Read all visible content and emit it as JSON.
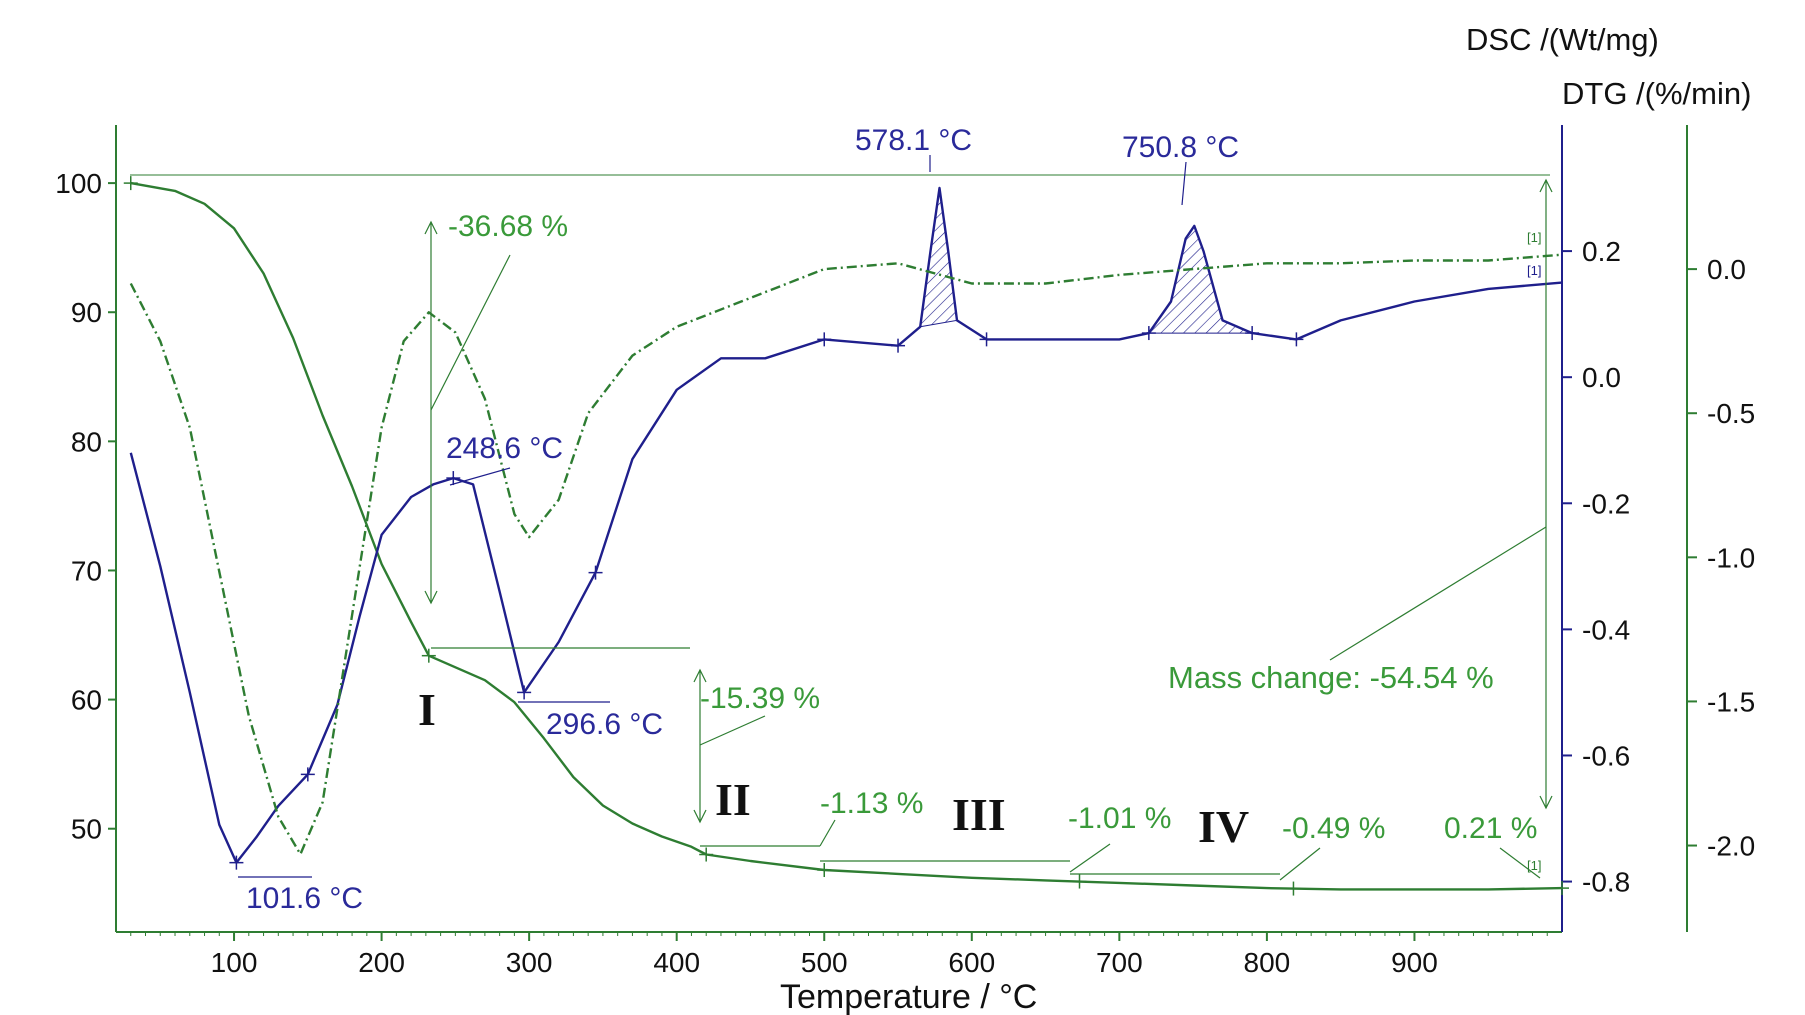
{
  "chart_data": {
    "type": "line",
    "title": "",
    "xlabel": "Temperature / °C",
    "xlim": [
      20,
      1000
    ],
    "x_ticks": [
      100,
      200,
      300,
      400,
      500,
      600,
      700,
      800,
      900
    ],
    "axes": {
      "tg": {
        "label": "",
        "ylim": [
          42,
          104.5
        ],
        "ticks": [
          50,
          60,
          70,
          80,
          90,
          100
        ]
      },
      "dsc": {
        "label": "DSC /(Wt/mg)",
        "ylim": [
          -0.88,
          0.4
        ],
        "ticks": [
          -0.8,
          -0.6,
          -0.4,
          -0.2,
          0.0,
          0.2
        ]
      },
      "dtg": {
        "label": "DTG /(%/min)",
        "ylim": [
          -2.3,
          0.5
        ],
        "ticks": [
          -2.0,
          -1.5,
          -1.0,
          -0.5,
          0.0
        ]
      }
    },
    "colors": {
      "tg": "#2e7d32",
      "dsc": "#1f1f8c",
      "dtg": "#2e7d32",
      "axis": "#2e7d32",
      "tg_label": "#3a9a3a",
      "dsc_label": "#2a2a9a"
    },
    "series": [
      {
        "name": "TG",
        "axis": "tg",
        "style": "solid",
        "x": [
          30,
          60,
          80,
          100,
          120,
          140,
          160,
          180,
          200,
          220,
          232,
          250,
          270,
          290,
          310,
          330,
          350,
          370,
          390,
          410,
          420,
          450,
          500,
          550,
          600,
          650,
          700,
          750,
          800,
          850,
          900,
          950,
          1000
        ],
        "y": [
          100,
          99.4,
          98.4,
          96.5,
          93,
          88,
          82,
          76.5,
          70.5,
          66,
          63.4,
          62.5,
          61.5,
          59.8,
          57,
          54,
          51.8,
          50.4,
          49.4,
          48.6,
          48.0,
          47.5,
          46.8,
          46.5,
          46.2,
          46.0,
          45.8,
          45.6,
          45.4,
          45.3,
          45.3,
          45.3,
          45.4
        ]
      },
      {
        "name": "DSC",
        "axis": "dsc",
        "style": "solid",
        "x": [
          30,
          50,
          70,
          90,
          101.6,
          115,
          130,
          150,
          170,
          185,
          200,
          220,
          235,
          248.6,
          262,
          280,
          296.6,
          320,
          345,
          370,
          400,
          430,
          460,
          500,
          550,
          565,
          572,
          578.1,
          584,
          590,
          610,
          650,
          700,
          720,
          735,
          745,
          750.8,
          757,
          770,
          790,
          820,
          850,
          900,
          950,
          1000
        ],
        "y": [
          -0.12,
          -0.3,
          -0.5,
          -0.71,
          -0.77,
          -0.73,
          -0.68,
          -0.63,
          -0.52,
          -0.38,
          -0.25,
          -0.19,
          -0.17,
          -0.16,
          -0.17,
          -0.34,
          -0.5,
          -0.42,
          -0.31,
          -0.13,
          -0.02,
          0.03,
          0.03,
          0.06,
          0.05,
          0.08,
          0.2,
          0.3,
          0.2,
          0.09,
          0.06,
          0.06,
          0.06,
          0.07,
          0.12,
          0.22,
          0.24,
          0.2,
          0.09,
          0.07,
          0.06,
          0.09,
          0.12,
          0.14,
          0.15
        ]
      },
      {
        "name": "DTG",
        "axis": "dtg",
        "style": "dashdot",
        "x": [
          30,
          50,
          70,
          90,
          110,
          130,
          145,
          160,
          180,
          200,
          215,
          232,
          250,
          270,
          290,
          300,
          320,
          340,
          370,
          400,
          450,
          500,
          550,
          600,
          650,
          700,
          750,
          800,
          850,
          900,
          950,
          1000
        ],
        "y": [
          -0.05,
          -0.25,
          -0.55,
          -1.05,
          -1.55,
          -1.9,
          -2.03,
          -1.85,
          -1.2,
          -0.55,
          -0.25,
          -0.15,
          -0.22,
          -0.45,
          -0.85,
          -0.93,
          -0.8,
          -0.5,
          -0.3,
          -0.2,
          -0.1,
          0.0,
          0.02,
          -0.05,
          -0.05,
          -0.02,
          0.0,
          0.02,
          0.02,
          0.03,
          0.03,
          0.05
        ]
      }
    ],
    "annotations": {
      "dsc_peaks": [
        "578.1 °C",
        "750.8 °C",
        "248.6 °C",
        "296.6 °C",
        "101.6 °C"
      ],
      "mass_steps": [
        "-36.68 %",
        "-15.39 %",
        "-1.13 %",
        "-1.01 %",
        "-0.49 %",
        "0.21 %"
      ],
      "mass_change": "Mass change: -54.54 %",
      "stages": [
        "I",
        "II",
        "III",
        "IV"
      ],
      "curve_tags": [
        "[1]",
        "[1]",
        "[1]"
      ]
    }
  }
}
